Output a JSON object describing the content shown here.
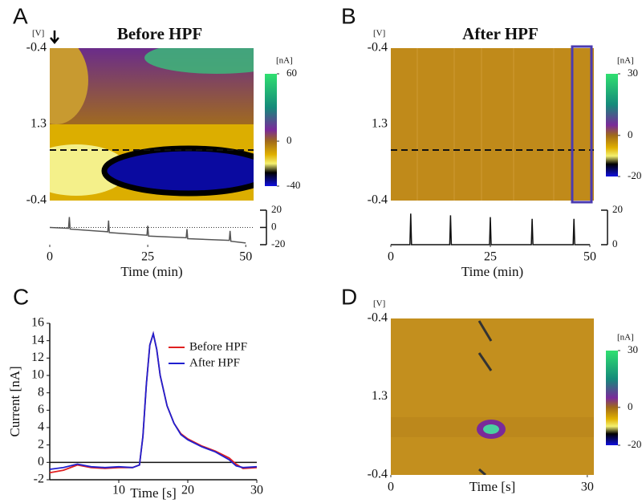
{
  "chart_data": [
    {
      "panel": "A",
      "type": "colorplot",
      "title": "Before HPF",
      "ylabel": "[V]",
      "y_labels": [
        -0.4,
        1.3,
        -0.4
      ],
      "xlabel": "Time (min)",
      "xlim": [
        0,
        52
      ],
      "xticks": [
        0,
        25,
        50
      ],
      "colorbar_label": "[nA]",
      "colorbar_lim": [
        -40,
        60
      ],
      "colorbar_ticks": [
        60,
        0,
        -40
      ],
      "trace": {
        "x": [
          0,
          4.8,
          5,
          5.2,
          14.8,
          15,
          15.2,
          24.8,
          25,
          25.2,
          34.8,
          35,
          35.2,
          45.8,
          46,
          46.2,
          50
        ],
        "values": [
          0,
          -1,
          12,
          -2,
          -5,
          8,
          -6,
          -9,
          2,
          -10,
          -12,
          -2,
          -13,
          -15,
          -4,
          -16,
          -18
        ],
        "color": "#555555",
        "ylim": [
          -20,
          20
        ],
        "yticks": [
          20,
          0,
          -20
        ]
      }
    },
    {
      "panel": "B",
      "type": "colorplot",
      "title": "After HPF",
      "ylabel": "[V]",
      "y_labels": [
        -0.4,
        1.3,
        -0.4
      ],
      "xlabel": "Time (min)",
      "xlim": [
        0,
        51
      ],
      "xticks": [
        0,
        25,
        50
      ],
      "colorbar_label": "[nA]",
      "colorbar_lim": [
        -20,
        30
      ],
      "colorbar_ticks": [
        30,
        0,
        -20
      ],
      "trace": {
        "x": [
          0,
          4.8,
          5,
          5.2,
          14.8,
          15,
          15.2,
          24.8,
          25,
          25.2,
          35.3,
          35.5,
          35.7,
          45.8,
          46,
          46.2,
          50
        ],
        "values": [
          0,
          0,
          18,
          0,
          0,
          17,
          0,
          0,
          16,
          0,
          0,
          15,
          0,
          0,
          15,
          0,
          0
        ],
        "color": "#111111",
        "ylim": [
          0,
          20
        ],
        "yticks": [
          20,
          0
        ]
      }
    },
    {
      "panel": "C",
      "type": "line",
      "xlabel": "Time [s]",
      "ylabel": "Current [nA]",
      "xlim": [
        0,
        30
      ],
      "ylim": [
        -2,
        16
      ],
      "xticks": [
        10,
        20,
        30
      ],
      "yticks": [
        -2,
        0,
        2,
        4,
        6,
        8,
        10,
        12,
        14,
        16
      ],
      "legend": "upper right",
      "x": [
        0,
        2,
        4,
        6,
        8,
        10,
        12,
        13,
        13.5,
        14,
        14.5,
        15,
        15.5,
        16,
        17,
        18,
        19,
        20,
        22,
        24,
        26,
        27,
        28,
        30
      ],
      "series": [
        {
          "name": "Before HPF",
          "color": "#e02020",
          "values": [
            -1.2,
            -0.9,
            -0.3,
            -0.6,
            -0.7,
            -0.6,
            -0.6,
            -0.3,
            3,
            9,
            13.5,
            14.8,
            13,
            10,
            6.5,
            4.5,
            3.3,
            2.7,
            1.9,
            1.3,
            0.5,
            -0.2,
            -0.7,
            -0.6
          ]
        },
        {
          "name": "After HPF",
          "color": "#2020d0",
          "values": [
            -0.8,
            -0.6,
            -0.2,
            -0.5,
            -0.6,
            -0.5,
            -0.6,
            -0.3,
            3,
            9,
            13.5,
            14.8,
            13,
            10,
            6.5,
            4.5,
            3.2,
            2.6,
            1.8,
            1.2,
            0.3,
            -0.4,
            -0.6,
            -0.5
          ]
        }
      ]
    },
    {
      "panel": "D",
      "type": "colorplot",
      "ylabel": "[V]",
      "y_labels": [
        -0.4,
        1.3,
        -0.4
      ],
      "xlabel": "Time [s]",
      "xlim": [
        0,
        31
      ],
      "xticks": [
        0,
        30
      ],
      "colorbar_label": "[nA]",
      "colorbar_lim": [
        -20,
        30
      ],
      "colorbar_ticks": [
        30,
        0,
        -20
      ]
    }
  ]
}
